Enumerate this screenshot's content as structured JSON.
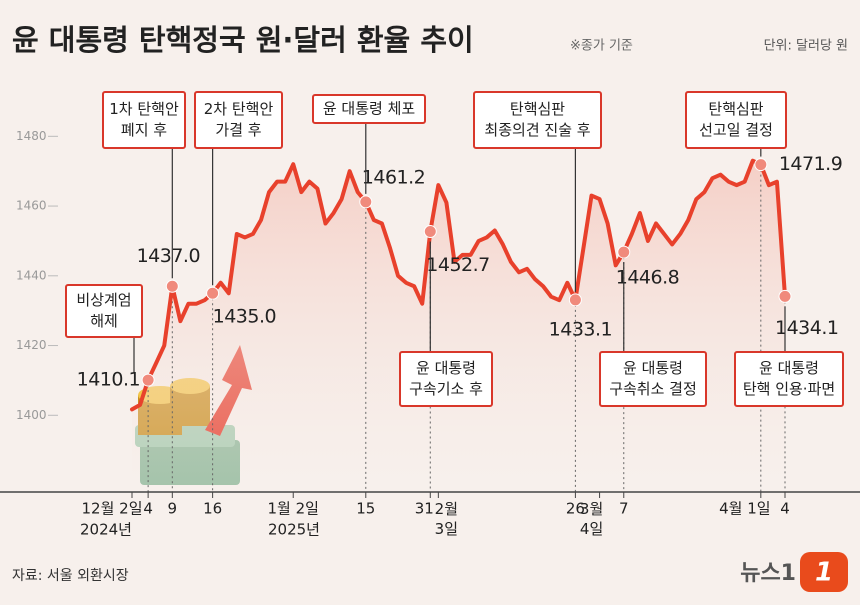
{
  "chart_data": {
    "type": "line",
    "title": "윤 대통령 탄핵정국 원·달러 환율 추이",
    "note": "※종가 기준",
    "unit": "단위: 달러당 원",
    "source": "자료: 서울 외환시장",
    "logo": "뉴스1",
    "color": "#e8412c",
    "ylim": [
      1378,
      1494
    ],
    "yticks": [
      1400,
      1420,
      1440,
      1460,
      1480
    ],
    "grid": false,
    "categories": [
      "12월 2일",
      null,
      "4",
      null,
      null,
      "9",
      null,
      null,
      null,
      null,
      "16",
      null,
      null,
      null,
      null,
      null,
      null,
      null,
      null,
      null,
      "1월 2일",
      null,
      null,
      null,
      null,
      null,
      null,
      null,
      null,
      "15",
      null,
      null,
      null,
      null,
      null,
      null,
      null,
      "31",
      "2월 3일",
      null,
      null,
      null,
      null,
      null,
      null,
      null,
      null,
      null,
      null,
      null,
      null,
      null,
      null,
      null,
      null,
      "26",
      null,
      null,
      "3월 4일",
      null,
      null,
      "7",
      null,
      null,
      null,
      null,
      null,
      null,
      null,
      null,
      null,
      null,
      null,
      null,
      null,
      null,
      null,
      null,
      "4월 1일",
      null,
      null,
      "4"
    ],
    "year_labels": [
      "2024년",
      "2025년"
    ],
    "values": [
      1401.7,
      1403,
      1410.1,
      1415,
      1420,
      1437.0,
      1427,
      1432,
      1432,
      1433,
      1435.0,
      1438,
      1435,
      1452,
      1451,
      1452,
      1456,
      1464,
      1467,
      1467,
      1472,
      1464,
      1467,
      1465,
      1455,
      1458,
      1462,
      1470,
      1464,
      1461.2,
      1456,
      1455,
      1448,
      1440,
      1438,
      1437,
      1432,
      1452.7,
      1466,
      1461,
      1444,
      1446,
      1446,
      1450,
      1451,
      1453,
      1449,
      1444,
      1441,
      1442,
      1439,
      1437,
      1434,
      1433,
      1438,
      1433.1,
      1448,
      1463,
      1462,
      1455,
      1443,
      1446.8,
      1452,
      1458,
      1450,
      1455,
      1452,
      1449,
      1452,
      1456,
      1462,
      1464,
      1468,
      1469,
      1467,
      1466,
      1467,
      1473,
      1471.9,
      1466,
      1467,
      1434.1
    ],
    "value_labels": [
      null,
      null,
      "1410.1",
      null,
      null,
      "1437.0",
      null,
      null,
      null,
      null,
      "1435.0",
      null,
      null,
      null,
      null,
      null,
      null,
      null,
      null,
      null,
      null,
      null,
      null,
      null,
      null,
      null,
      null,
      null,
      null,
      "1461.2",
      null,
      null,
      null,
      null,
      null,
      null,
      null,
      "1452.7",
      null,
      null,
      null,
      null,
      null,
      null,
      null,
      null,
      null,
      null,
      null,
      null,
      null,
      null,
      null,
      null,
      null,
      "1433.1",
      null,
      null,
      null,
      null,
      null,
      "1446.8",
      null,
      null,
      null,
      null,
      null,
      null,
      null,
      null,
      null,
      null,
      null,
      null,
      null,
      null,
      null,
      null,
      "1471.9",
      null,
      null,
      "1434.1"
    ],
    "annotations": [
      {
        "lines": [
          "비상계엄",
          "해제"
        ]
      },
      {
        "lines": [
          "1차 탄핵안",
          "폐지 후"
        ]
      },
      {
        "lines": [
          "2차 탄핵안",
          "가결 후"
        ]
      },
      {
        "lines": [
          "윤 대통령 체포"
        ]
      },
      {
        "lines": [
          "윤 대통령",
          "구속기소 후"
        ]
      },
      {
        "lines": [
          "탄핵심판",
          "최종의견 진술 후"
        ]
      },
      {
        "lines": [
          "윤 대통령",
          "구속취소 결정"
        ]
      },
      {
        "lines": [
          "탄핵심판",
          "선고일 결정"
        ]
      },
      {
        "lines": [
          "윤 대통령",
          "탄핵 인용·파면"
        ]
      }
    ]
  }
}
